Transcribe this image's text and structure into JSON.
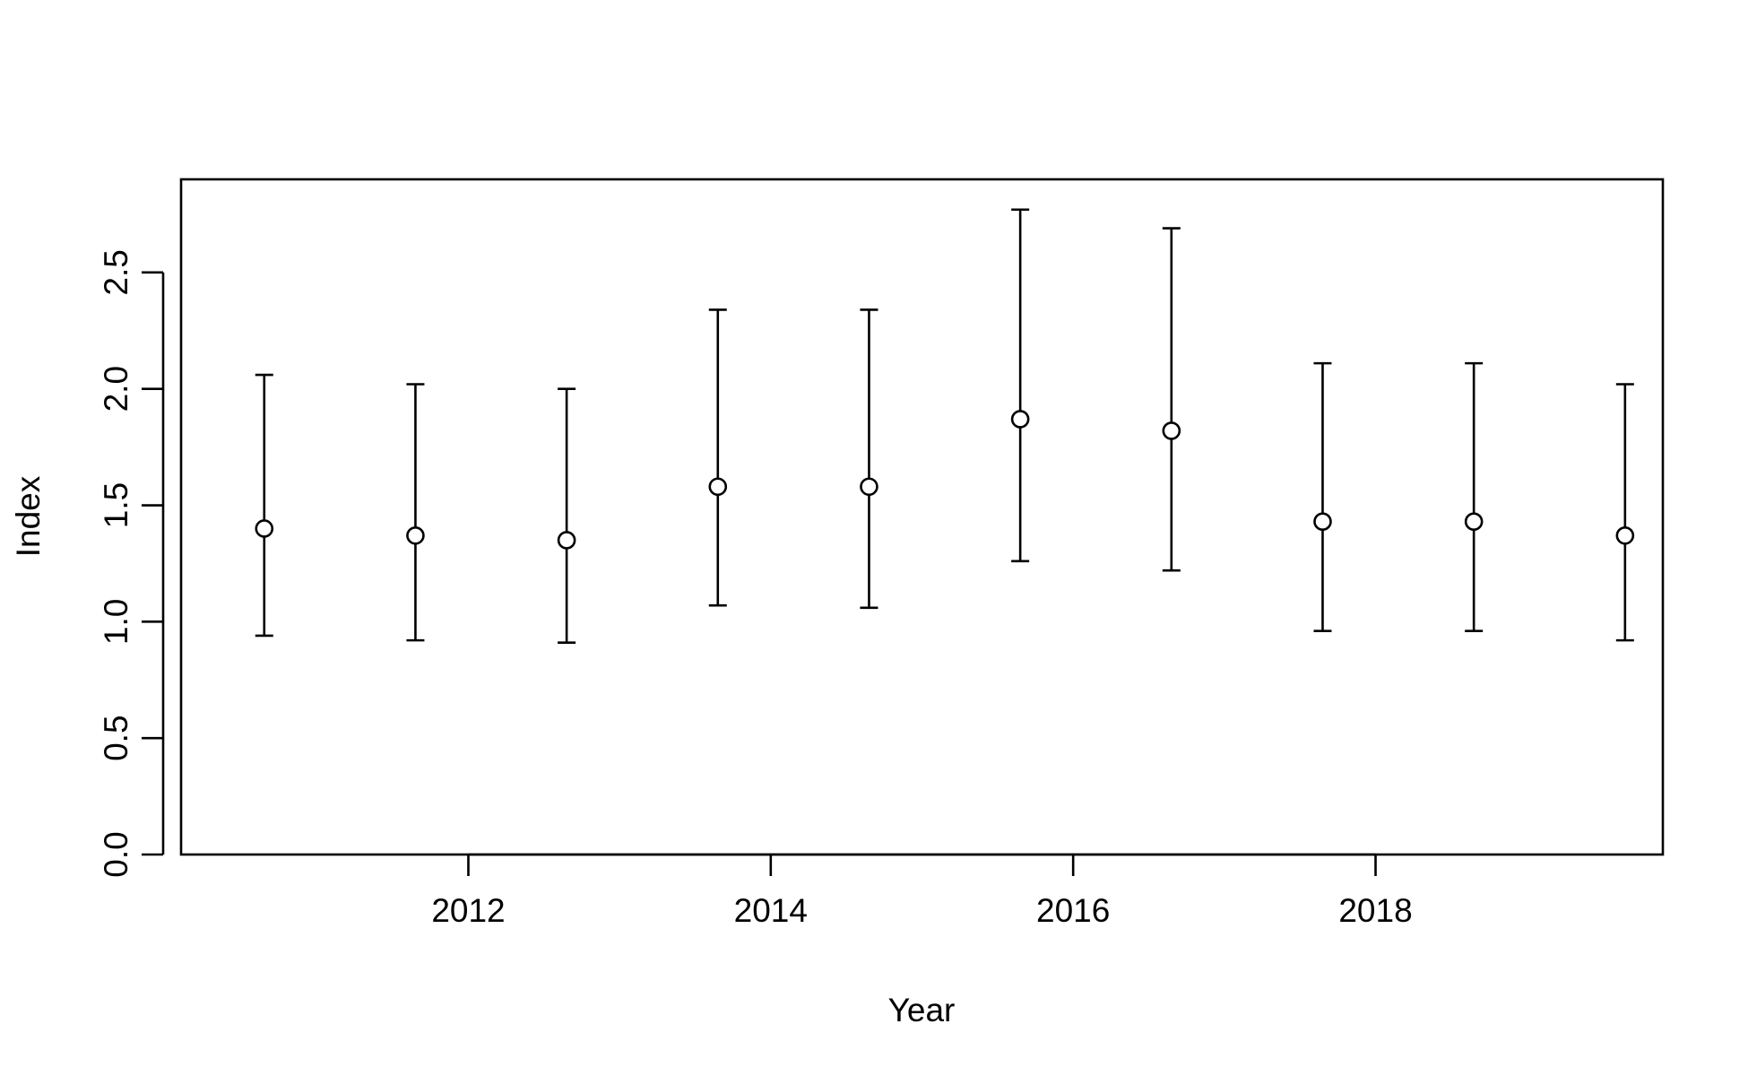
{
  "chart_data": {
    "type": "scatter",
    "title": "",
    "xlabel": "Year",
    "ylabel": "Index",
    "xlim": [
      2010.1,
      2019.9
    ],
    "ylim": [
      0.0,
      2.9
    ],
    "x_ticks": [
      2012,
      2014,
      2016,
      2018
    ],
    "x_tick_labels": [
      "2012",
      "2014",
      "2016",
      "2018"
    ],
    "y_ticks": [
      0.0,
      0.5,
      1.0,
      1.5,
      2.0,
      2.5
    ],
    "y_tick_labels": [
      "0.0",
      "0.5",
      "1.0",
      "1.5",
      "2.0",
      "2.5"
    ],
    "grid": false,
    "legend": "none",
    "series": [
      {
        "marker": "open-circle",
        "error_bars": true,
        "points": [
          {
            "x": 2010.65,
            "y": 1.4,
            "lower": 0.94,
            "upper": 2.06
          },
          {
            "x": 2011.65,
            "y": 1.37,
            "lower": 0.92,
            "upper": 2.02
          },
          {
            "x": 2012.65,
            "y": 1.35,
            "lower": 0.91,
            "upper": 2.0
          },
          {
            "x": 2013.65,
            "y": 1.58,
            "lower": 1.07,
            "upper": 2.34
          },
          {
            "x": 2014.65,
            "y": 1.58,
            "lower": 1.06,
            "upper": 2.34
          },
          {
            "x": 2015.65,
            "y": 1.87,
            "lower": 1.26,
            "upper": 2.77
          },
          {
            "x": 2016.65,
            "y": 1.82,
            "lower": 1.22,
            "upper": 2.69
          },
          {
            "x": 2017.65,
            "y": 1.43,
            "lower": 0.96,
            "upper": 2.11
          },
          {
            "x": 2018.65,
            "y": 1.43,
            "lower": 0.96,
            "upper": 2.11
          },
          {
            "x": 2019.65,
            "y": 1.37,
            "lower": 0.92,
            "upper": 2.02
          }
        ]
      }
    ]
  }
}
